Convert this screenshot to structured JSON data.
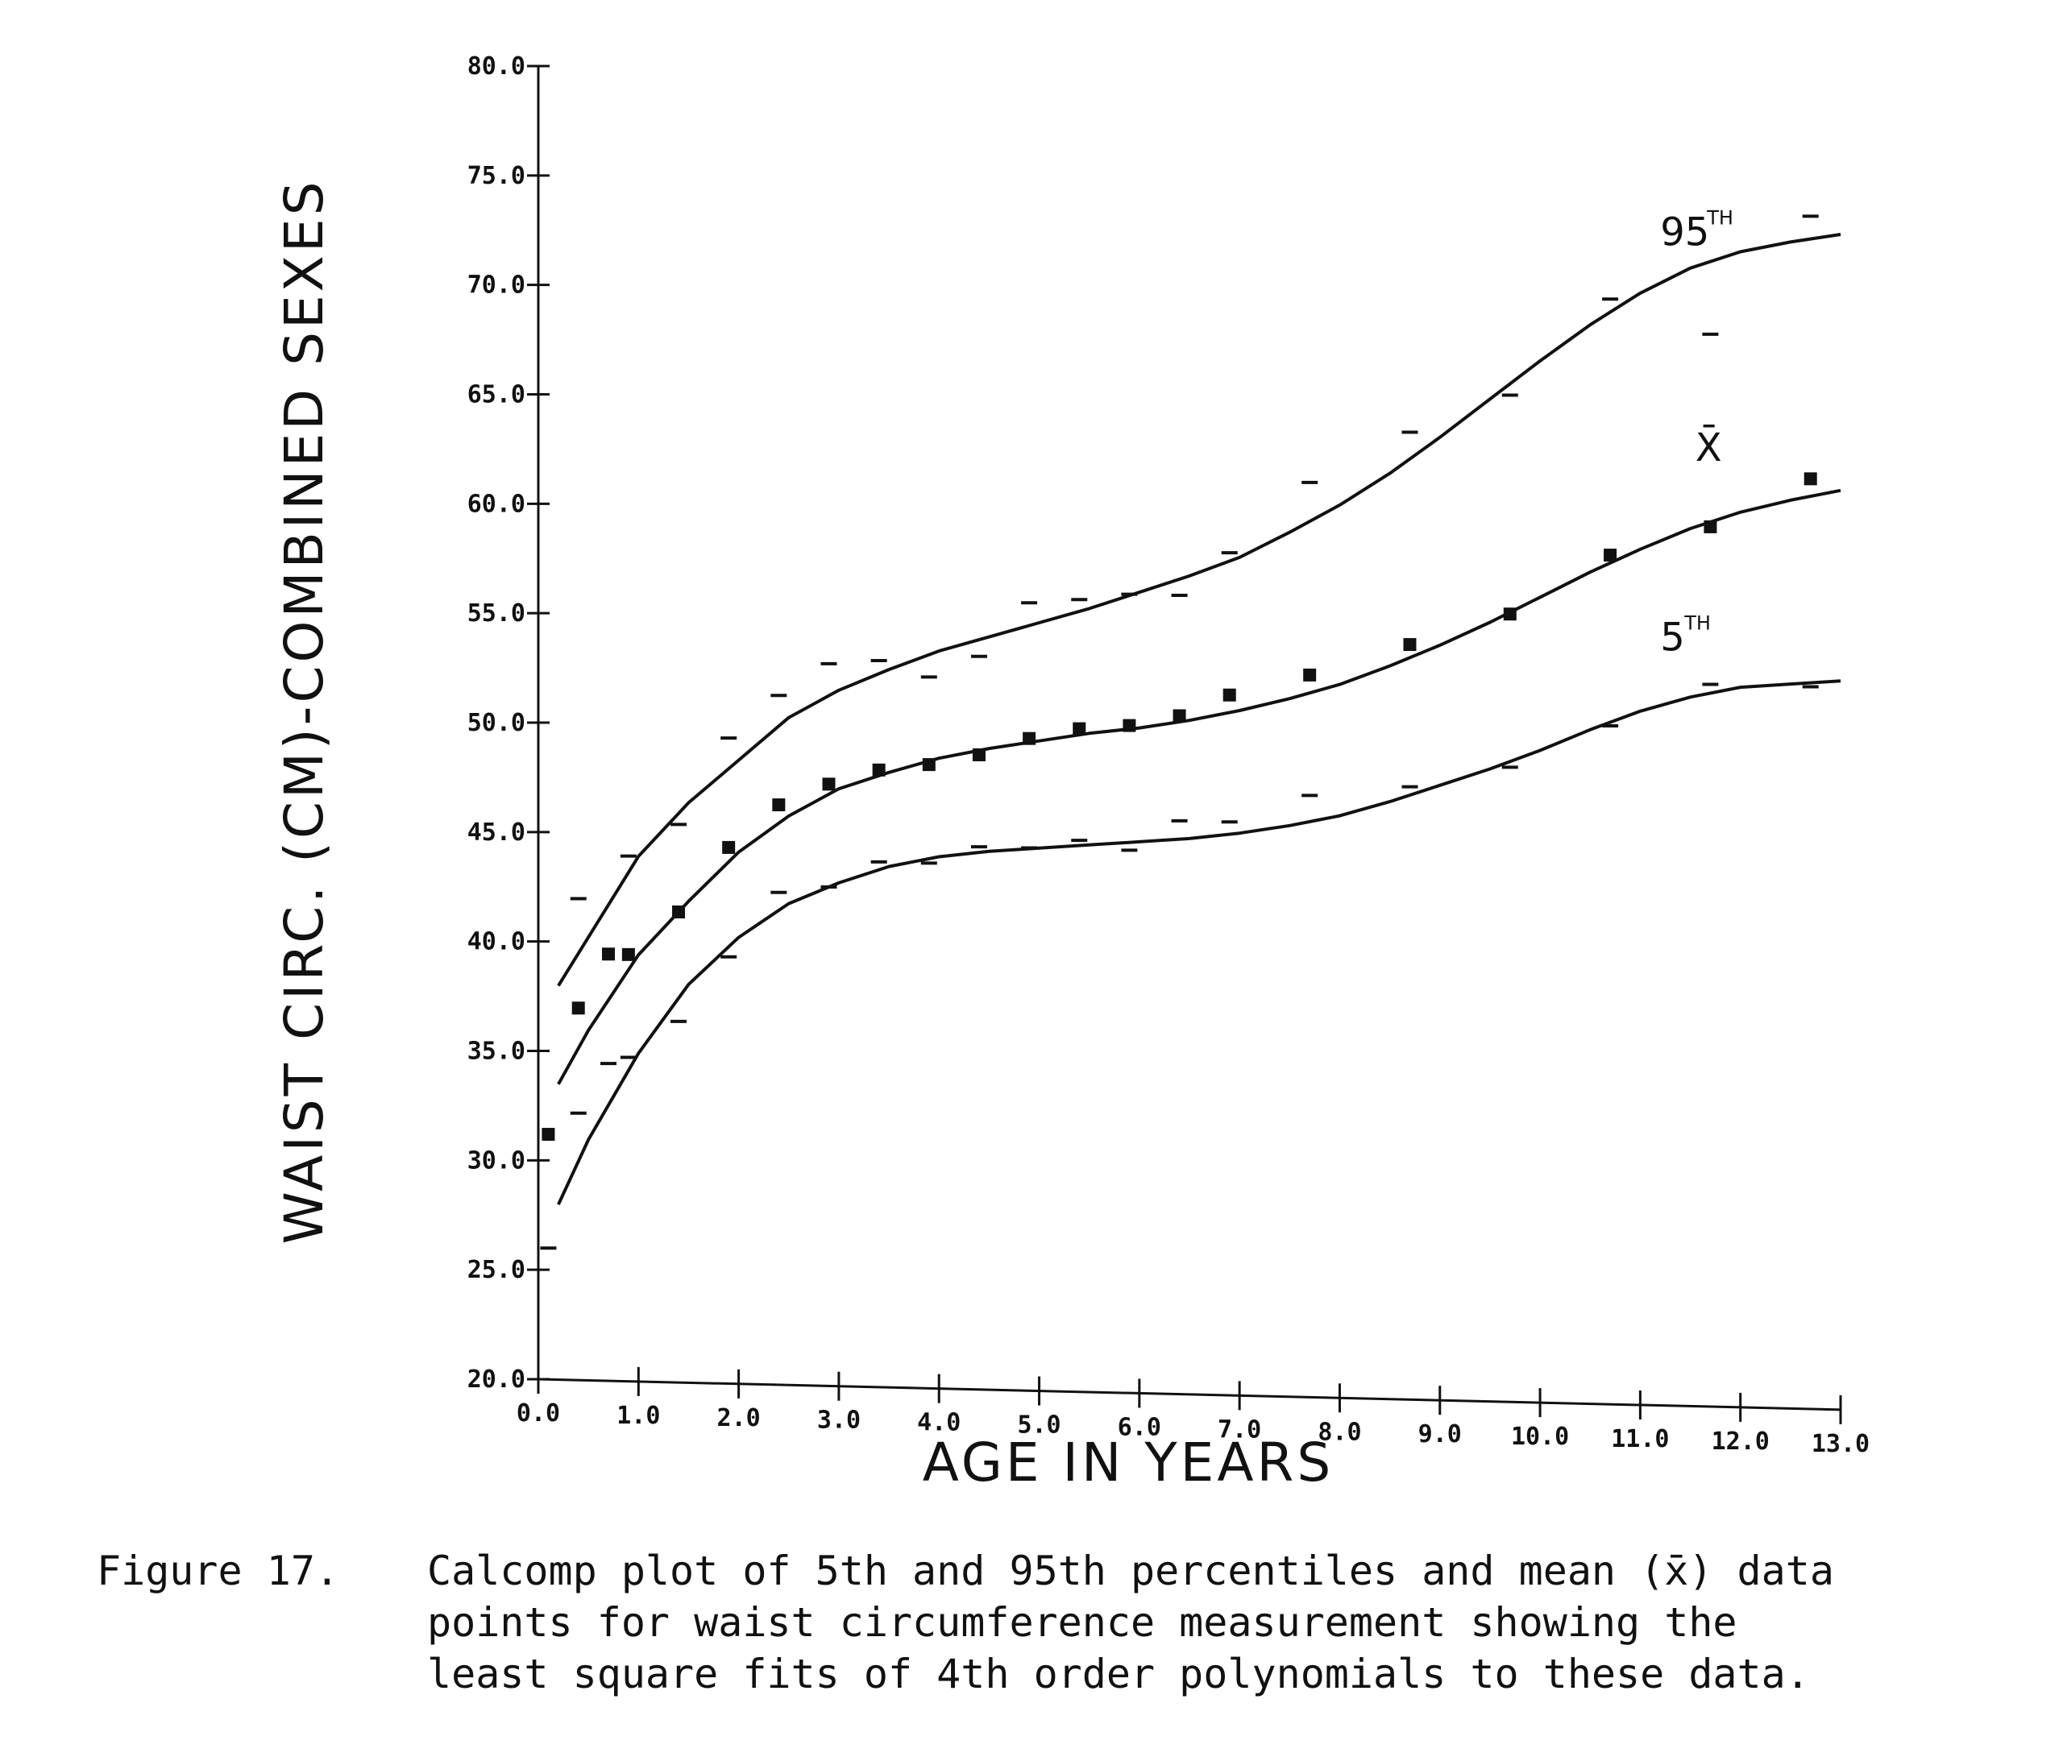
{
  "chart_data": {
    "type": "line",
    "title": "",
    "xlabel": "AGE IN YEARS",
    "ylabel": "WAIST CIRC. (CM)-COMBINED SEXES",
    "xlim": [
      0,
      13
    ],
    "ylim": [
      20,
      80
    ],
    "x_ticks": [
      0,
      1,
      2,
      3,
      4,
      5,
      6,
      7,
      8,
      9,
      10,
      11,
      12,
      13
    ],
    "x_tick_labels": [
      "0.0",
      "1.0",
      "2.0",
      "3.0",
      "4.0",
      "5.0",
      "6.0",
      "7.0",
      "8.0",
      "9.0",
      "10.0",
      "11.0",
      "12.0",
      "13.0"
    ],
    "y_ticks": [
      20,
      25,
      30,
      35,
      40,
      45,
      50,
      55,
      60,
      65,
      70,
      75,
      80
    ],
    "y_tick_labels": [
      "20.0",
      "25.0",
      "30.0",
      "35.0",
      "40.0",
      "45.0",
      "50.0",
      "55.0",
      "60.0",
      "65.0",
      "70.0",
      "75.0",
      "80.0"
    ],
    "series": [
      {
        "name": "95th percentile",
        "label": "95",
        "label_sup": "TH",
        "marker": "dash",
        "points_x": [
          0.4,
          0.9,
          1.4,
          1.9,
          2.4,
          2.9,
          3.4,
          3.9,
          4.4,
          4.9,
          5.4,
          5.9,
          6.4,
          6.9,
          7.7,
          8.7,
          9.7,
          10.7,
          11.7,
          12.7
        ],
        "points_y": [
          42,
          44,
          45.5,
          49.5,
          51.5,
          53,
          53.2,
          52.5,
          53.5,
          56,
          56.2,
          56.5,
          56.5,
          58.5,
          61.8,
          64.2,
          66,
          70.5,
          69,
          74.5
        ],
        "fit_x": [
          0.2,
          1.0,
          1.5,
          2.0,
          2.5,
          3.0,
          3.5,
          4.0,
          4.5,
          5.0,
          5.5,
          6.0,
          6.5,
          7.0,
          7.5,
          8.0,
          8.5,
          9.0,
          9.5,
          10.0,
          10.5,
          11.0,
          11.5,
          12.0,
          12.5,
          13.0
        ],
        "fit_y": [
          38,
          44,
          46.5,
          48.5,
          50.5,
          51.8,
          52.8,
          53.7,
          54.4,
          55.1,
          55.8,
          56.6,
          57.4,
          58.3,
          59.5,
          60.8,
          62.3,
          64,
          65.8,
          67.6,
          69.3,
          70.8,
          72,
          72.8,
          73.3,
          73.7
        ]
      },
      {
        "name": "Mean",
        "label": "X̄",
        "marker": "square",
        "points_x": [
          0.1,
          0.4,
          0.7,
          0.9,
          1.4,
          1.9,
          2.4,
          2.9,
          3.4,
          3.9,
          4.4,
          4.9,
          5.4,
          5.9,
          6.4,
          6.9,
          7.7,
          8.7,
          9.7,
          10.7,
          11.7,
          12.7
        ],
        "points_y": [
          31.2,
          37,
          39.5,
          39.5,
          41.5,
          44.5,
          46.5,
          47.5,
          48.2,
          48.5,
          49,
          49.8,
          50.3,
          50.5,
          51,
          52,
          53,
          54.5,
          56,
          58.8,
          60.2,
          62.5
        ],
        "fit_x": [
          0.2,
          0.5,
          1.0,
          1.5,
          2.0,
          2.5,
          3.0,
          3.5,
          4.0,
          4.5,
          5.0,
          5.5,
          6.0,
          6.5,
          7.0,
          7.5,
          8.0,
          8.5,
          9.0,
          9.5,
          10.0,
          10.5,
          11.0,
          11.5,
          12.0,
          12.5,
          13.0
        ],
        "fit_y": [
          33.5,
          36,
          39.5,
          42,
          44.3,
          46,
          47.3,
          48.1,
          48.8,
          49.3,
          49.7,
          50.1,
          50.4,
          50.8,
          51.3,
          51.9,
          52.6,
          53.5,
          54.5,
          55.6,
          56.8,
          58,
          59.1,
          60.1,
          60.9,
          61.5,
          62
        ]
      },
      {
        "name": "5th percentile",
        "label": "5",
        "label_sup": "TH",
        "marker": "dash",
        "points_x": [
          0.1,
          0.4,
          0.7,
          0.9,
          1.4,
          1.9,
          2.4,
          2.9,
          3.4,
          3.9,
          4.4,
          4.9,
          5.4,
          5.9,
          6.4,
          6.9,
          7.7,
          8.7,
          9.7,
          10.7,
          11.7,
          12.7
        ],
        "points_y": [
          26,
          32.2,
          34.5,
          34.8,
          36.5,
          39.5,
          42.5,
          42.8,
          44,
          44,
          44.8,
          44.8,
          45.2,
          44.8,
          46.2,
          46.2,
          47.5,
          48,
          49,
          51,
          53,
          53
        ],
        "fit_x": [
          0.2,
          0.5,
          1.0,
          1.5,
          2.0,
          2.5,
          3.0,
          3.5,
          4.0,
          4.5,
          5.0,
          5.5,
          6.0,
          6.5,
          7.0,
          7.5,
          8.0,
          8.5,
          9.0,
          9.5,
          10.0,
          10.5,
          11.0,
          11.5,
          12.0,
          12.5,
          13.0
        ],
        "fit_y": [
          28,
          31,
          35,
          38.2,
          40.4,
          42,
          43,
          43.8,
          44.3,
          44.6,
          44.8,
          45,
          45.2,
          45.4,
          45.7,
          46.1,
          46.6,
          47.3,
          48.1,
          48.9,
          49.8,
          50.8,
          51.7,
          52.4,
          52.9,
          53.1,
          53.3
        ]
      }
    ]
  },
  "caption": {
    "label": "Figure 17.",
    "lines": [
      "Calcomp plot of 5th and 95th percentiles and mean (x̄) data",
      "points for waist circumference measurement showing the",
      "least square fits of 4th order polynomials to these data."
    ]
  },
  "colors": {
    "ink": "#111111",
    "background": "#ffffff"
  }
}
